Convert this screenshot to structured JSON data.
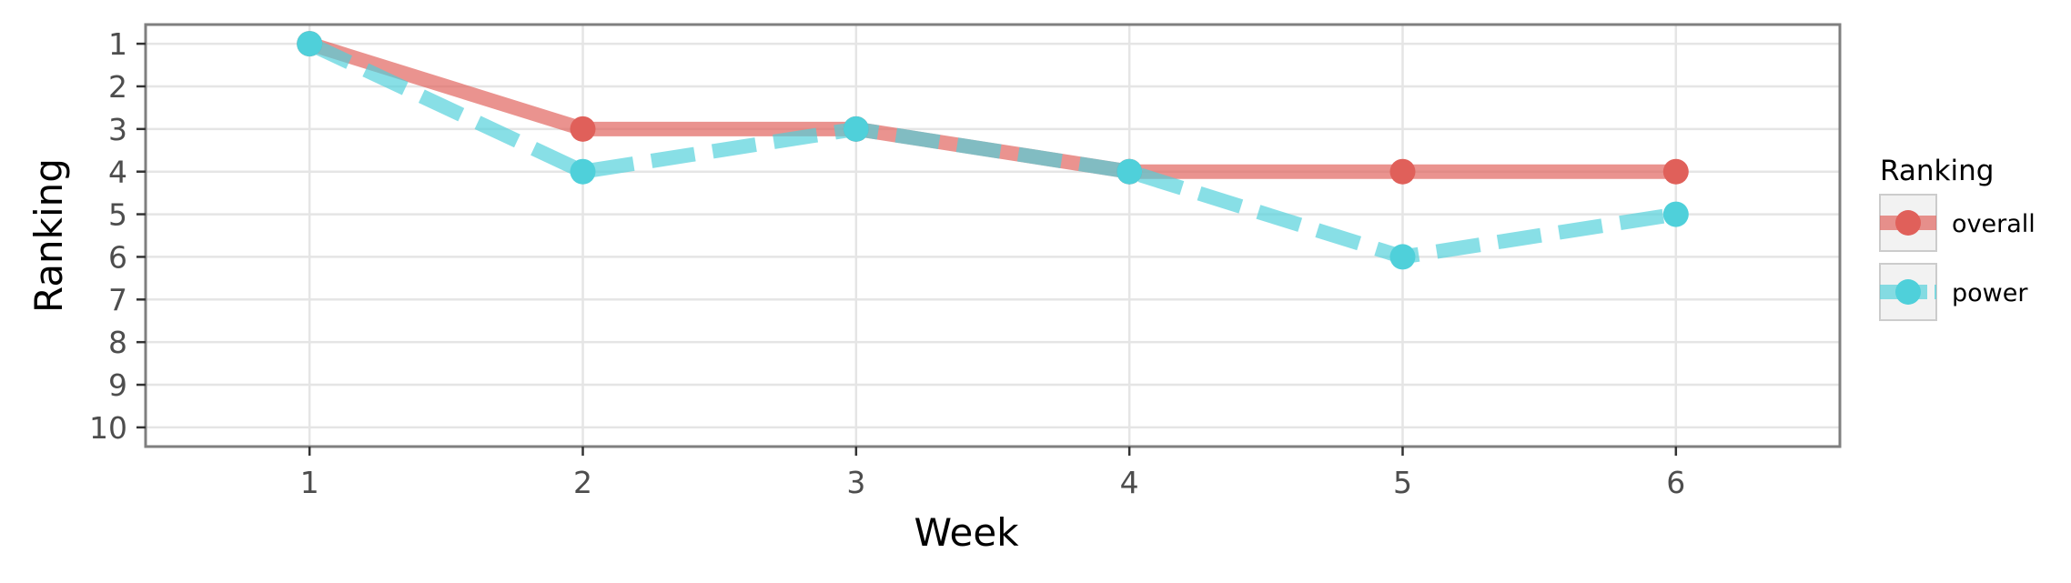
{
  "chart_data": {
    "type": "line",
    "xlabel": "Week",
    "ylabel": "Ranking",
    "x": [
      1,
      2,
      3,
      4,
      5,
      6
    ],
    "xlim": [
      0.4,
      6.6
    ],
    "ylim": [
      10.45,
      0.55
    ],
    "y_reversed": true,
    "x_ticks": [
      "1",
      "2",
      "3",
      "4",
      "5",
      "6"
    ],
    "y_ticks": [
      "1",
      "2",
      "3",
      "4",
      "5",
      "6",
      "7",
      "8",
      "9",
      "10"
    ],
    "grid": true,
    "legend": {
      "title": "Ranking",
      "placement": "right"
    },
    "series": [
      {
        "name": "overall",
        "values": [
          1,
          3,
          3,
          4,
          4,
          4
        ],
        "color": "#E0605A",
        "line_style": "solid"
      },
      {
        "name": "power",
        "values": [
          1,
          4,
          3,
          4,
          6,
          5
        ],
        "color": "#4FD0DA",
        "line_style": "dashed"
      }
    ]
  }
}
